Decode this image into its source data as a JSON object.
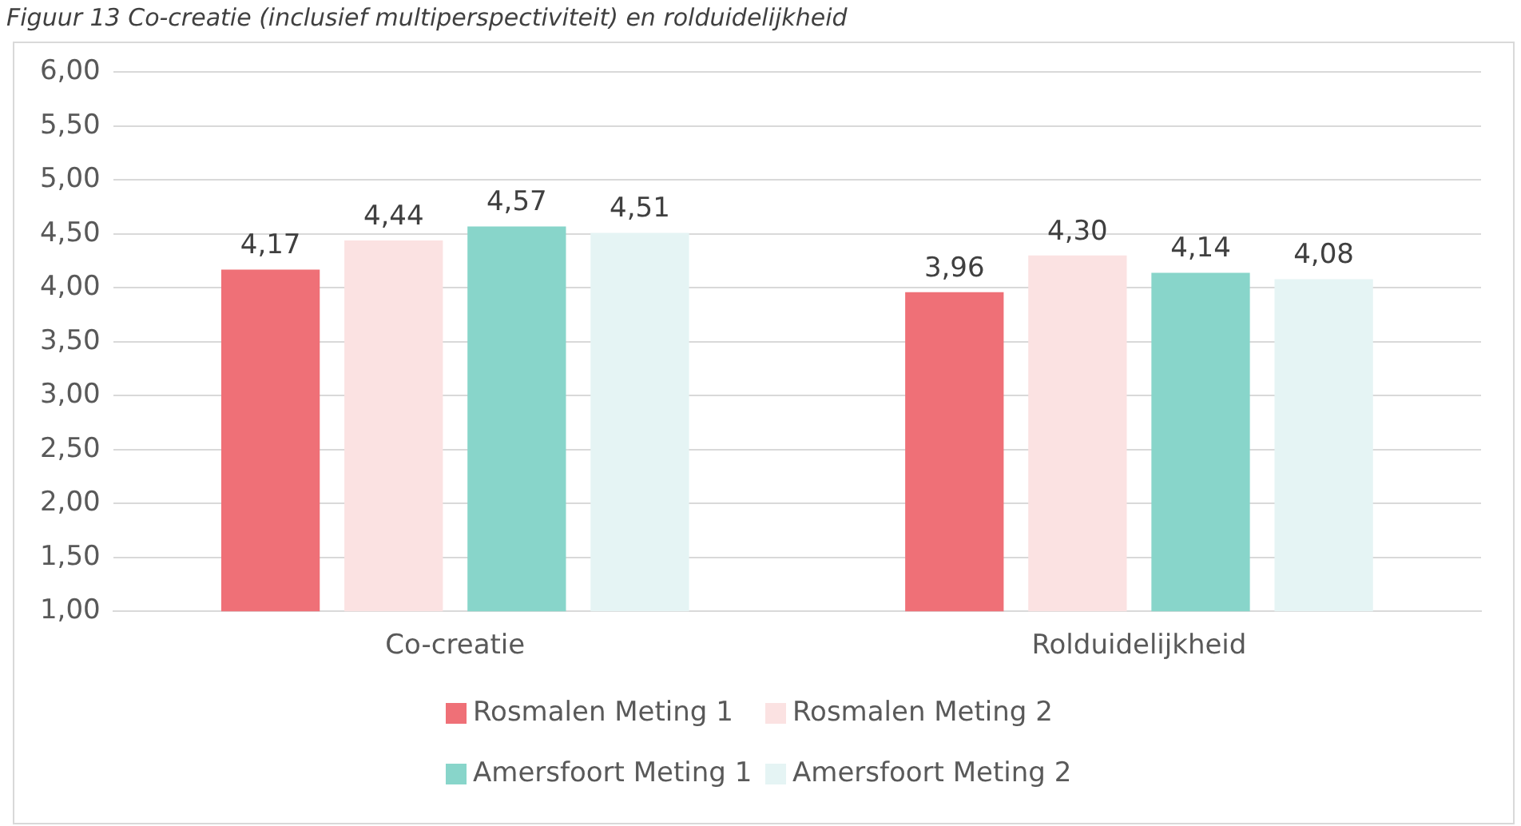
{
  "chart_data": {
    "type": "bar",
    "title": "Figuur 13 Co-creatie (inclusief multiperspectiviteit) en rolduidelijkheid",
    "categories": [
      "Co-creatie",
      "Rolduidelijkheid"
    ],
    "series": [
      {
        "name": "Rosmalen Meting 1",
        "color": "#ef7077",
        "values": [
          4.17,
          3.96
        ],
        "value_labels": [
          "4,17",
          "3,96"
        ]
      },
      {
        "name": "Rosmalen Meting 2",
        "color": "#fbe2e2",
        "values": [
          4.44,
          4.3
        ],
        "value_labels": [
          "4,44",
          "4,30"
        ]
      },
      {
        "name": "Amersfoort Meting 1",
        "color": "#88d5ca",
        "values": [
          4.57,
          4.14
        ],
        "value_labels": [
          "4,57",
          "4,14"
        ]
      },
      {
        "name": "Amersfoort Meting 2",
        "color": "#e5f4f4",
        "values": [
          4.51,
          4.08
        ],
        "value_labels": [
          "4,51",
          "4,08"
        ]
      }
    ],
    "ylim": [
      1,
      6
    ],
    "yticks": [
      {
        "value": 1,
        "label": "1,00"
      },
      {
        "value": 1.5,
        "label": "1,50"
      },
      {
        "value": 2,
        "label": "2,00"
      },
      {
        "value": 2.5,
        "label": "2,50"
      },
      {
        "value": 3,
        "label": "3,00"
      },
      {
        "value": 3.5,
        "label": "3,50"
      },
      {
        "value": 4,
        "label": "4,00"
      },
      {
        "value": 4.5,
        "label": "4,50"
      },
      {
        "value": 5,
        "label": "5,00"
      },
      {
        "value": 5.5,
        "label": "5,50"
      },
      {
        "value": 6,
        "label": "6,00"
      }
    ],
    "grid": "y",
    "legend": "bottom"
  }
}
